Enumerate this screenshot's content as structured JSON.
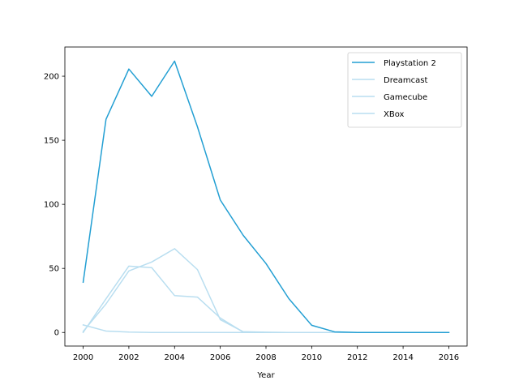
{
  "chart_data": {
    "type": "line",
    "title": "",
    "xlabel": "Year",
    "ylabel": "",
    "xlim": [
      1999.2,
      2016.8
    ],
    "ylim": [
      -10.6,
      222.8
    ],
    "xticks": [
      2000,
      2002,
      2004,
      2006,
      2008,
      2010,
      2012,
      2014,
      2016
    ],
    "yticks": [
      0,
      50,
      100,
      150,
      200
    ],
    "x": [
      2000,
      2001,
      2002,
      2003,
      2004,
      2005,
      2006,
      2007,
      2008,
      2009,
      2010,
      2011,
      2012,
      2013,
      2014,
      2015,
      2016
    ],
    "grid": false,
    "legend_position": "upper right",
    "series": [
      {
        "name": "Playstation 2",
        "color": "#239fd3",
        "values": [
          39.2,
          166.4,
          205.6,
          184.3,
          211.8,
          160.6,
          103.4,
          75.9,
          53.8,
          26.4,
          5.6,
          0.5,
          0,
          0,
          0,
          0,
          0
        ]
      },
      {
        "name": "Dreamcast",
        "color": "#b9def0",
        "values": [
          5.9,
          1.1,
          0.3,
          0,
          0,
          0,
          0,
          0,
          0,
          0,
          0,
          0,
          0,
          0,
          0,
          0,
          0
        ]
      },
      {
        "name": "Gamecube",
        "color": "#b9def0",
        "values": [
          0,
          26.3,
          51.8,
          50.6,
          28.8,
          27.6,
          11.3,
          0.3,
          0,
          0,
          0,
          0,
          0,
          0,
          0,
          0,
          0
        ]
      },
      {
        "name": "XBox",
        "color": "#b9def0",
        "values": [
          0.8,
          22.3,
          48.0,
          55.0,
          65.4,
          49.1,
          10.0,
          0.6,
          0.2,
          0,
          0,
          0,
          0,
          0,
          0,
          0,
          0
        ]
      }
    ]
  }
}
